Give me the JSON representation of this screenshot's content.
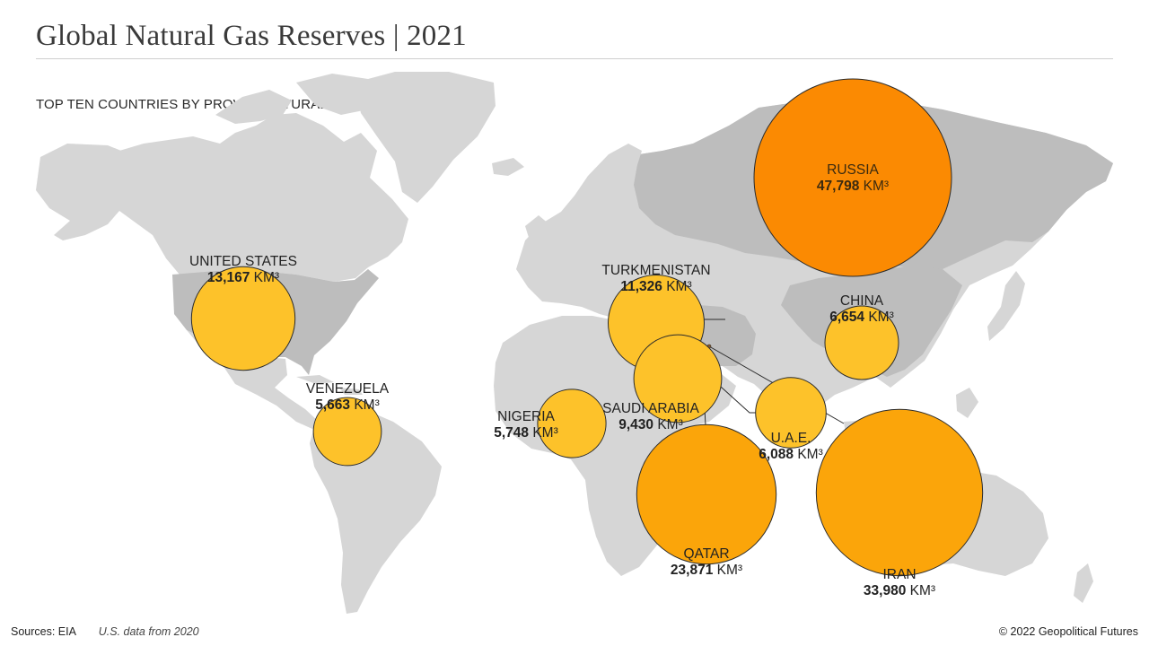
{
  "header": {
    "title": "Global Natural Gas Reserves | 2021",
    "subtitle": "TOP TEN COUNTRIES BY PROVEN NATURAL GAS RESERVES (KM³)"
  },
  "colors": {
    "land": "#d6d6d6",
    "land_highlight": "#bdbdbd",
    "land_light": "#e6e6e6",
    "bubble_small": "#fdc22a",
    "bubble_mid": "#fba50a",
    "bubble_large": "#fb8a02",
    "stroke": "#2b2b2b"
  },
  "chart_data": {
    "type": "bubble-map",
    "unit": "KM³",
    "countries": [
      {
        "name": "RUSSIA",
        "value": 47798,
        "value_label": "47,798",
        "unit": "KM³"
      },
      {
        "name": "IRAN",
        "value": 33980,
        "value_label": "33,980",
        "unit": "KM³"
      },
      {
        "name": "QATAR",
        "value": 23871,
        "value_label": "23,871",
        "unit": "KM³"
      },
      {
        "name": "UNITED STATES",
        "value": 13167,
        "value_label": "13,167",
        "unit": "KM³"
      },
      {
        "name": "TURKMENISTAN",
        "value": 11326,
        "value_label": "11,326",
        "unit": "KM³"
      },
      {
        "name": "SAUDI ARABIA",
        "value": 9430,
        "value_label": "9,430",
        "unit": "KM³"
      },
      {
        "name": "CHINA",
        "value": 6654,
        "value_label": "6,654",
        "unit": "KM³"
      },
      {
        "name": "U.A.E.",
        "value": 6088,
        "value_label": "6,088",
        "unit": "KM³"
      },
      {
        "name": "NIGERIA",
        "value": 5748,
        "value_label": "5,748",
        "unit": "KM³"
      },
      {
        "name": "VENEZUELA",
        "value": 5663,
        "value_label": "5,663",
        "unit": "KM³"
      }
    ]
  },
  "footer": {
    "sources": "Sources: EIA",
    "note": "U.S. data from 2020",
    "copyright": "© 2022 Geopolitical Futures"
  }
}
